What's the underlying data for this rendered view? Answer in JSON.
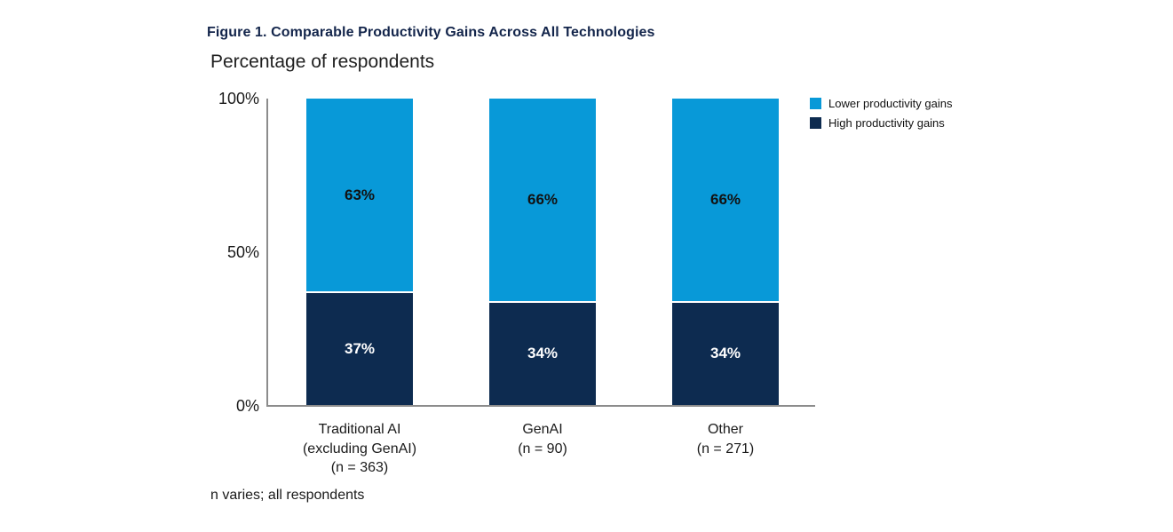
{
  "chart_data": {
    "type": "bar",
    "stacked": true,
    "title": "Figure 1. Comparable Productivity Gains Across All Technologies",
    "title_color": "#13254b",
    "ylabel": "Percentage of respondents",
    "xlabel": "",
    "categories": [
      "Traditional AI (excluding GenAI) (n = 363)",
      "GenAI (n = 90)",
      "Other (n = 271)"
    ],
    "category_lines": [
      [
        "Traditional AI",
        "(excluding GenAI)",
        "(n = 363)"
      ],
      [
        "GenAI",
        "(n = 90)"
      ],
      [
        "Other",
        "(n = 271)"
      ]
    ],
    "series": [
      {
        "name": "Lower productivity gains",
        "color": "#0899d8",
        "values": [
          63,
          66,
          66
        ]
      },
      {
        "name": "High productivity gains",
        "color": "#0d2b50",
        "values": [
          37,
          34,
          34
        ]
      }
    ],
    "y_ticks": [
      "100%",
      "50%",
      "0%"
    ],
    "ylim": [
      0,
      100
    ],
    "grid": false,
    "legend_position": "top-right",
    "axis_color": "#8c8c8c",
    "footnote": "n varies; all respondents"
  }
}
